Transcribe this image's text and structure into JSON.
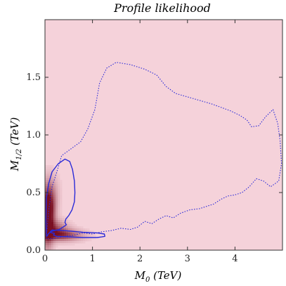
{
  "chart_data": {
    "type": "heatmap",
    "title": "Profile likelihood",
    "xlabel": {
      "main": "M",
      "sub": "0",
      "unit": " (TeV)"
    },
    "ylabel": {
      "main": "M",
      "sub": "1/2",
      "unit": " (TeV)"
    },
    "xlim": [
      0,
      5
    ],
    "ylim": [
      0,
      2
    ],
    "x_ticks": [
      0,
      1,
      2,
      3,
      4
    ],
    "x_tick_labels": [
      "0",
      "1",
      "2",
      "3",
      "4"
    ],
    "y_ticks": [
      0.0,
      0.5,
      1.0,
      1.5
    ],
    "y_tick_labels": [
      "0.0",
      "0.5",
      "1.0",
      "1.5"
    ],
    "background_color": "#f5d2da",
    "peak_color": "#7a0f22",
    "contour_color": "#2a2ad8",
    "hotspots": [
      {
        "x": 0.05,
        "y": 0.26,
        "sx": 0.09,
        "sy": 0.16,
        "w": 1.0
      },
      {
        "x": 0.08,
        "y": 0.38,
        "sx": 0.1,
        "sy": 0.11,
        "w": 0.55
      },
      {
        "x": 0.35,
        "y": 0.13,
        "sx": 0.3,
        "sy": 0.035,
        "w": 0.75
      },
      {
        "x": 0.22,
        "y": 0.19,
        "sx": 0.18,
        "sy": 0.05,
        "w": 0.5
      },
      {
        "x": 0.12,
        "y": 0.5,
        "sx": 0.12,
        "sy": 0.12,
        "w": 0.25
      }
    ],
    "contours": [
      {
        "level": "inner",
        "style": "solid",
        "x": [
          0.03,
          0.02,
          0.03,
          0.08,
          0.15,
          0.28,
          0.42,
          0.52,
          0.58,
          0.62,
          0.63,
          0.62,
          0.57,
          0.5,
          0.44,
          0.42,
          0.45,
          0.38,
          0.3,
          0.2,
          0.12,
          0.07,
          0.04,
          0.03
        ],
        "y": [
          0.12,
          0.25,
          0.45,
          0.58,
          0.68,
          0.75,
          0.79,
          0.77,
          0.7,
          0.6,
          0.5,
          0.42,
          0.35,
          0.3,
          0.27,
          0.24,
          0.22,
          0.2,
          0.18,
          0.17,
          0.16,
          0.14,
          0.12,
          0.12
        ]
      },
      {
        "level": "inner",
        "style": "solid",
        "x": [
          0.1,
          0.15,
          0.4,
          0.8,
          1.1,
          1.25,
          1.26,
          1.2,
          1.1,
          0.8,
          0.5,
          0.25,
          0.18,
          0.2,
          0.15,
          0.1
        ],
        "y": [
          0.155,
          0.175,
          0.17,
          0.155,
          0.15,
          0.14,
          0.12,
          0.115,
          0.11,
          0.11,
          0.115,
          0.12,
          0.13,
          0.145,
          0.15,
          0.155
        ]
      },
      {
        "level": "outer",
        "style": "dotted",
        "x": [
          0.03,
          0.08,
          0.15,
          0.25,
          0.35,
          0.55,
          0.75,
          0.9,
          1.05,
          1.15,
          1.3,
          1.5,
          1.8,
          2.1,
          2.35,
          2.55,
          2.75,
          3.0,
          3.25,
          3.5,
          3.7,
          3.9,
          4.1,
          4.25,
          4.35,
          4.5,
          4.65,
          4.8,
          4.9,
          4.95,
          4.98,
          4.92,
          4.75,
          4.6,
          4.45,
          4.3,
          4.15,
          4.0,
          3.85,
          3.7,
          3.55,
          3.4,
          3.25,
          3.05,
          2.85,
          2.7,
          2.55,
          2.4,
          2.25,
          2.1,
          1.95,
          1.8,
          1.6,
          1.4,
          1.2,
          1.0,
          0.8,
          0.6,
          0.4,
          0.2,
          0.08,
          0.03,
          0.03
        ],
        "y": [
          0.12,
          0.35,
          0.55,
          0.68,
          0.82,
          0.88,
          0.94,
          1.05,
          1.22,
          1.45,
          1.58,
          1.63,
          1.61,
          1.57,
          1.52,
          1.42,
          1.36,
          1.33,
          1.3,
          1.27,
          1.24,
          1.21,
          1.17,
          1.13,
          1.07,
          1.08,
          1.16,
          1.22,
          1.1,
          0.95,
          0.75,
          0.6,
          0.55,
          0.6,
          0.62,
          0.55,
          0.5,
          0.48,
          0.47,
          0.44,
          0.4,
          0.38,
          0.36,
          0.35,
          0.32,
          0.28,
          0.3,
          0.27,
          0.23,
          0.25,
          0.2,
          0.18,
          0.19,
          0.17,
          0.16,
          0.14,
          0.15,
          0.13,
          0.12,
          0.1,
          0.1,
          0.1,
          0.12
        ]
      }
    ]
  }
}
